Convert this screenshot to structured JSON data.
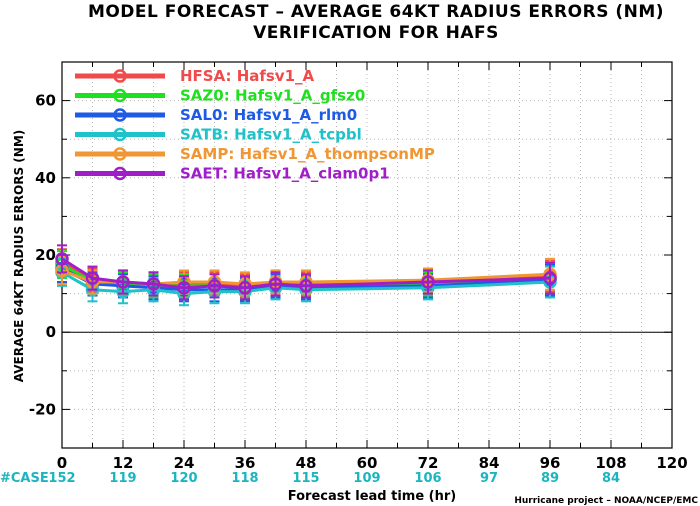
{
  "chart_data": {
    "type": "line",
    "title": "MODEL FORECAST – AVERAGE 64KT RADIUS ERRORS (NM)",
    "subtitle": "VERIFICATION FOR HAFS",
    "ylabel": "AVERAGE 64KT RADIUS ERRORS (NM)",
    "xlabel": "Forecast lead time (hr)",
    "credit": "Hurricane project – NOAA/NCEP/EMC",
    "xlim": [
      0,
      120
    ],
    "ylim": [
      -30,
      70
    ],
    "xticks": [
      0,
      12,
      24,
      36,
      48,
      60,
      72,
      84,
      96,
      108,
      120
    ],
    "yticks": [
      -20,
      0,
      20,
      40,
      60
    ],
    "grid": true,
    "legend_position": "top-left",
    "case_label": "#CASE",
    "case_counts": [
      {
        "hour": 0,
        "count": "152"
      },
      {
        "hour": 12,
        "count": "119"
      },
      {
        "hour": 24,
        "count": "120"
      },
      {
        "hour": 36,
        "count": "118"
      },
      {
        "hour": 48,
        "count": "115"
      },
      {
        "hour": 60,
        "count": "109"
      },
      {
        "hour": 72,
        "count": "106"
      },
      {
        "hour": 84,
        "count": "97"
      },
      {
        "hour": 96,
        "count": "89"
      },
      {
        "hour": 108,
        "count": "84"
      }
    ],
    "x": [
      0,
      6,
      12,
      18,
      24,
      30,
      36,
      42,
      48,
      72,
      96
    ],
    "series": [
      {
        "name": "HFSA: Hafsv1_A",
        "color": "#f04a4a",
        "values": [
          18.0,
          13.5,
          13.0,
          12.5,
          12.5,
          12.5,
          12.0,
          13.0,
          12.5,
          13.0,
          14.5
        ],
        "err": [
          3.5,
          3.0,
          3.0,
          3.0,
          3.0,
          3.0,
          3.0,
          3.0,
          3.0,
          3.0,
          4.0
        ]
      },
      {
        "name": "SAZ0: Hafsv1_A_gfsz0",
        "color": "#1ee01e",
        "values": [
          17.5,
          13.0,
          12.5,
          12.0,
          12.0,
          12.0,
          11.5,
          12.5,
          12.0,
          12.5,
          14.0
        ],
        "err": [
          3.5,
          3.0,
          3.0,
          3.0,
          3.0,
          3.0,
          3.0,
          3.0,
          3.0,
          3.0,
          4.0
        ]
      },
      {
        "name": "SAL0: Hafsv1_A_rlm0",
        "color": "#1e5ae6",
        "values": [
          16.5,
          12.5,
          12.0,
          11.5,
          11.0,
          11.0,
          11.0,
          12.0,
          11.5,
          12.0,
          13.5
        ],
        "err": [
          3.5,
          3.0,
          3.0,
          3.0,
          3.0,
          3.0,
          3.0,
          3.0,
          3.0,
          3.0,
          4.0
        ]
      },
      {
        "name": "SATB: Hafsv1_A_tcpbl",
        "color": "#1ec2c8",
        "values": [
          15.5,
          11.0,
          10.5,
          11.0,
          10.0,
          10.5,
          10.5,
          11.5,
          11.0,
          11.5,
          13.0
        ],
        "err": [
          3.5,
          3.0,
          3.0,
          3.0,
          3.0,
          3.0,
          3.0,
          3.0,
          3.0,
          3.0,
          4.0
        ]
      },
      {
        "name": "SAMP: Hafsv1_A_thompsonMP",
        "color": "#f09632",
        "values": [
          16.0,
          13.0,
          13.0,
          12.5,
          13.0,
          13.0,
          12.5,
          13.0,
          13.0,
          13.5,
          15.0
        ],
        "err": [
          3.5,
          3.0,
          3.0,
          3.0,
          3.0,
          3.0,
          3.0,
          3.0,
          3.0,
          3.0,
          4.0
        ]
      },
      {
        "name": "SAET: Hafsv1_A_clam0p1",
        "color": "#a01ec8",
        "values": [
          19.0,
          14.0,
          13.0,
          12.5,
          11.5,
          12.0,
          11.5,
          12.5,
          12.0,
          13.0,
          14.0
        ],
        "err": [
          3.5,
          3.0,
          3.0,
          3.0,
          3.0,
          3.0,
          3.0,
          3.0,
          3.0,
          3.0,
          4.0
        ]
      }
    ]
  }
}
